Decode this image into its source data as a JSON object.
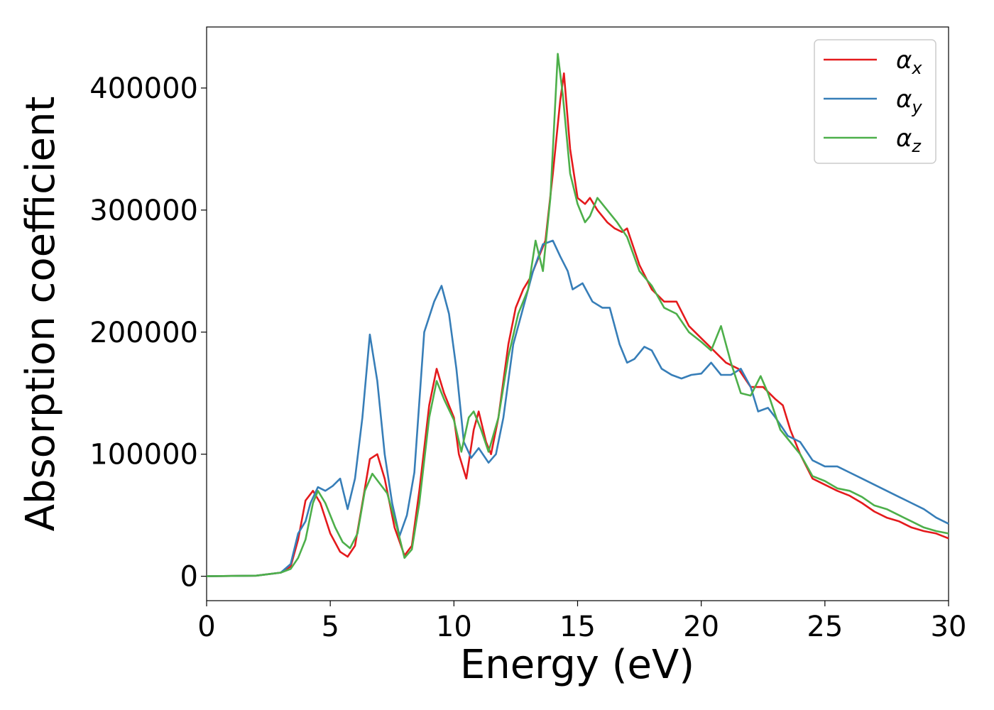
{
  "chart_data": {
    "type": "line",
    "xlabel": "Energy (eV)",
    "ylabel": "Absorption coefficient",
    "xlim": [
      0,
      30
    ],
    "ylim": [
      -20000,
      450000
    ],
    "xticks": [
      0,
      5,
      10,
      15,
      20,
      25,
      30
    ],
    "xtick_labels": [
      "0",
      "5",
      "10",
      "15",
      "20",
      "25",
      "30"
    ],
    "yticks": [
      0,
      100000,
      200000,
      300000,
      400000
    ],
    "ytick_labels": [
      "0",
      "100000",
      "200000",
      "300000",
      "400000"
    ],
    "grid": false,
    "legend_position": "top-right",
    "series": [
      {
        "name": "α",
        "subscript": "x",
        "color": "#e41a1c",
        "points": [
          [
            0,
            0
          ],
          [
            2,
            500
          ],
          [
            3,
            3000
          ],
          [
            3.4,
            8000
          ],
          [
            3.7,
            30000
          ],
          [
            4,
            62000
          ],
          [
            4.3,
            70000
          ],
          [
            4.6,
            60000
          ],
          [
            5,
            35000
          ],
          [
            5.4,
            20000
          ],
          [
            5.7,
            16000
          ],
          [
            6,
            25000
          ],
          [
            6.3,
            60000
          ],
          [
            6.6,
            96000
          ],
          [
            6.9,
            100000
          ],
          [
            7.2,
            80000
          ],
          [
            7.6,
            40000
          ],
          [
            8,
            17000
          ],
          [
            8.3,
            25000
          ],
          [
            8.6,
            70000
          ],
          [
            9,
            140000
          ],
          [
            9.3,
            170000
          ],
          [
            9.6,
            150000
          ],
          [
            10,
            130000
          ],
          [
            10.2,
            100000
          ],
          [
            10.5,
            80000
          ],
          [
            10.8,
            120000
          ],
          [
            11,
            135000
          ],
          [
            11.3,
            110000
          ],
          [
            11.5,
            100000
          ],
          [
            11.8,
            130000
          ],
          [
            12.2,
            190000
          ],
          [
            12.5,
            220000
          ],
          [
            12.8,
            235000
          ],
          [
            13.1,
            245000
          ],
          [
            13.4,
            260000
          ],
          [
            13.7,
            275000
          ],
          [
            14,
            330000
          ],
          [
            14.3,
            390000
          ],
          [
            14.45,
            412000
          ],
          [
            14.7,
            350000
          ],
          [
            15,
            310000
          ],
          [
            15.3,
            305000
          ],
          [
            15.5,
            310000
          ],
          [
            15.8,
            300000
          ],
          [
            16.2,
            290000
          ],
          [
            16.5,
            285000
          ],
          [
            16.8,
            282000
          ],
          [
            17,
            285000
          ],
          [
            17.5,
            255000
          ],
          [
            18,
            235000
          ],
          [
            18.5,
            225000
          ],
          [
            19,
            225000
          ],
          [
            19.5,
            205000
          ],
          [
            20,
            195000
          ],
          [
            20.5,
            185000
          ],
          [
            21,
            175000
          ],
          [
            21.5,
            170000
          ],
          [
            22,
            155000
          ],
          [
            22.5,
            155000
          ],
          [
            23,
            145000
          ],
          [
            23.3,
            140000
          ],
          [
            23.6,
            120000
          ],
          [
            24,
            100000
          ],
          [
            24.5,
            80000
          ],
          [
            25,
            75000
          ],
          [
            25.5,
            70000
          ],
          [
            26,
            66000
          ],
          [
            26.5,
            60000
          ],
          [
            27,
            53000
          ],
          [
            27.5,
            48000
          ],
          [
            28,
            45000
          ],
          [
            28.5,
            40000
          ],
          [
            29,
            37000
          ],
          [
            29.5,
            35000
          ],
          [
            30,
            31000
          ]
        ]
      },
      {
        "name": "α",
        "subscript": "y",
        "color": "#377eb8",
        "points": [
          [
            0,
            0
          ],
          [
            2,
            500
          ],
          [
            3,
            3000
          ],
          [
            3.4,
            10000
          ],
          [
            3.7,
            35000
          ],
          [
            4,
            45000
          ],
          [
            4.2,
            60000
          ],
          [
            4.5,
            73000
          ],
          [
            4.8,
            70000
          ],
          [
            5.1,
            74000
          ],
          [
            5.4,
            80000
          ],
          [
            5.7,
            55000
          ],
          [
            6,
            80000
          ],
          [
            6.3,
            130000
          ],
          [
            6.6,
            198000
          ],
          [
            6.9,
            160000
          ],
          [
            7.2,
            100000
          ],
          [
            7.5,
            60000
          ],
          [
            7.8,
            33000
          ],
          [
            8.1,
            50000
          ],
          [
            8.4,
            85000
          ],
          [
            8.8,
            200000
          ],
          [
            9.2,
            225000
          ],
          [
            9.5,
            238000
          ],
          [
            9.8,
            215000
          ],
          [
            10.1,
            170000
          ],
          [
            10.4,
            110000
          ],
          [
            10.7,
            97000
          ],
          [
            11,
            105000
          ],
          [
            11.4,
            93000
          ],
          [
            11.7,
            100000
          ],
          [
            12,
            130000
          ],
          [
            12.4,
            190000
          ],
          [
            12.8,
            220000
          ],
          [
            13.2,
            250000
          ],
          [
            13.6,
            272000
          ],
          [
            14,
            275000
          ],
          [
            14.3,
            262000
          ],
          [
            14.6,
            250000
          ],
          [
            14.8,
            235000
          ],
          [
            15.2,
            240000
          ],
          [
            15.6,
            225000
          ],
          [
            16,
            220000
          ],
          [
            16.3,
            220000
          ],
          [
            16.7,
            190000
          ],
          [
            17,
            175000
          ],
          [
            17.3,
            178000
          ],
          [
            17.7,
            188000
          ],
          [
            18,
            185000
          ],
          [
            18.4,
            170000
          ],
          [
            18.8,
            165000
          ],
          [
            19.2,
            162000
          ],
          [
            19.6,
            165000
          ],
          [
            20,
            166000
          ],
          [
            20.4,
            175000
          ],
          [
            20.8,
            165000
          ],
          [
            21.2,
            165000
          ],
          [
            21.6,
            170000
          ],
          [
            22,
            155000
          ],
          [
            22.3,
            135000
          ],
          [
            22.7,
            138000
          ],
          [
            23,
            130000
          ],
          [
            23.5,
            115000
          ],
          [
            24,
            110000
          ],
          [
            24.5,
            95000
          ],
          [
            25,
            90000
          ],
          [
            25.5,
            90000
          ],
          [
            26,
            85000
          ],
          [
            26.5,
            80000
          ],
          [
            27,
            75000
          ],
          [
            27.5,
            70000
          ],
          [
            28,
            65000
          ],
          [
            28.5,
            60000
          ],
          [
            29,
            55000
          ],
          [
            29.5,
            48000
          ],
          [
            30,
            43000
          ]
        ]
      },
      {
        "name": "α",
        "subscript": "z",
        "color": "#4daf4a",
        "points": [
          [
            0,
            0
          ],
          [
            2,
            500
          ],
          [
            3,
            3000
          ],
          [
            3.4,
            6000
          ],
          [
            3.7,
            15000
          ],
          [
            4,
            30000
          ],
          [
            4.3,
            60000
          ],
          [
            4.5,
            70000
          ],
          [
            4.8,
            60000
          ],
          [
            5.2,
            40000
          ],
          [
            5.5,
            28000
          ],
          [
            5.8,
            23000
          ],
          [
            6.1,
            35000
          ],
          [
            6.4,
            70000
          ],
          [
            6.7,
            84000
          ],
          [
            7,
            76000
          ],
          [
            7.3,
            68000
          ],
          [
            7.7,
            40000
          ],
          [
            8,
            15000
          ],
          [
            8.3,
            22000
          ],
          [
            8.6,
            60000
          ],
          [
            9,
            130000
          ],
          [
            9.3,
            160000
          ],
          [
            9.6,
            145000
          ],
          [
            10,
            128000
          ],
          [
            10.3,
            102000
          ],
          [
            10.6,
            130000
          ],
          [
            10.8,
            135000
          ],
          [
            11.1,
            120000
          ],
          [
            11.4,
            102000
          ],
          [
            11.8,
            130000
          ],
          [
            12.2,
            180000
          ],
          [
            12.6,
            215000
          ],
          [
            13,
            235000
          ],
          [
            13.3,
            275000
          ],
          [
            13.6,
            250000
          ],
          [
            13.9,
            310000
          ],
          [
            14.2,
            428000
          ],
          [
            14.4,
            395000
          ],
          [
            14.7,
            330000
          ],
          [
            15,
            305000
          ],
          [
            15.3,
            290000
          ],
          [
            15.5,
            295000
          ],
          [
            15.8,
            310000
          ],
          [
            16.2,
            300000
          ],
          [
            16.6,
            290000
          ],
          [
            17,
            278000
          ],
          [
            17.5,
            250000
          ],
          [
            18,
            238000
          ],
          [
            18.5,
            220000
          ],
          [
            19,
            215000
          ],
          [
            19.5,
            200000
          ],
          [
            20,
            192000
          ],
          [
            20.4,
            185000
          ],
          [
            20.8,
            205000
          ],
          [
            21.2,
            175000
          ],
          [
            21.6,
            150000
          ],
          [
            22,
            148000
          ],
          [
            22.4,
            164000
          ],
          [
            22.7,
            150000
          ],
          [
            23.2,
            120000
          ],
          [
            23.6,
            110000
          ],
          [
            24,
            100000
          ],
          [
            24.5,
            82000
          ],
          [
            25,
            78000
          ],
          [
            25.5,
            72000
          ],
          [
            26,
            70000
          ],
          [
            26.5,
            65000
          ],
          [
            27,
            58000
          ],
          [
            27.5,
            55000
          ],
          [
            28,
            50000
          ],
          [
            28.5,
            45000
          ],
          [
            29,
            40000
          ],
          [
            29.5,
            37000
          ],
          [
            30,
            35000
          ]
        ]
      }
    ]
  }
}
